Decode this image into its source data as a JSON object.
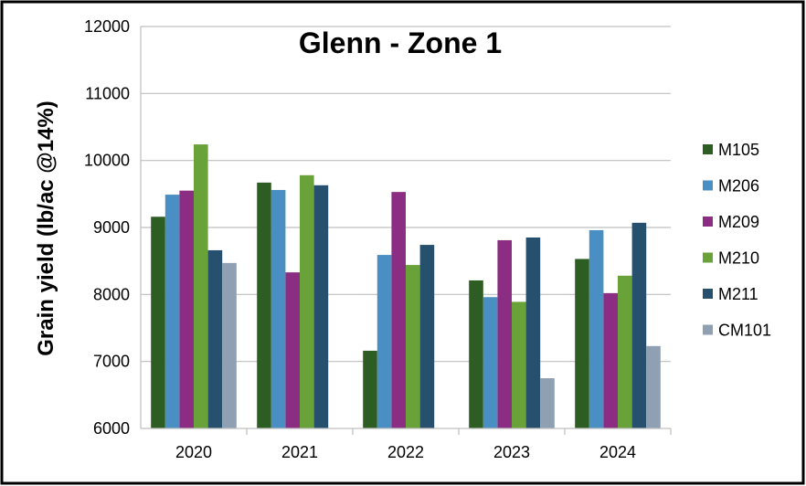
{
  "chart_data": {
    "type": "bar",
    "title": "Glenn - Zone 1",
    "xlabel": "",
    "ylabel": "Grain yield (lb/ac @14%)",
    "ylim": [
      6000,
      12000
    ],
    "yticks": [
      6000,
      7000,
      8000,
      9000,
      10000,
      11000,
      12000
    ],
    "grid": true,
    "legend_position": "right",
    "categories": [
      "2020",
      "2021",
      "2022",
      "2023",
      "2024"
    ],
    "series": [
      {
        "name": "M105",
        "color": "#2e5d23",
        "values": [
          9160,
          9670,
          7160,
          8210,
          8530
        ]
      },
      {
        "name": "M206",
        "color": "#4a8fc4",
        "values": [
          9490,
          9560,
          8590,
          7960,
          8960
        ]
      },
      {
        "name": "M209",
        "color": "#8b2e83",
        "values": [
          9550,
          8330,
          9530,
          8810,
          8020
        ]
      },
      {
        "name": "M210",
        "color": "#6aa23a",
        "values": [
          10240,
          9780,
          8440,
          7890,
          8280
        ]
      },
      {
        "name": "M211",
        "color": "#27506e",
        "values": [
          8660,
          9630,
          8740,
          8850,
          9070
        ]
      },
      {
        "name": "CM101",
        "color": "#8fa0b3",
        "values": [
          8470,
          null,
          null,
          6750,
          7230
        ]
      }
    ]
  }
}
